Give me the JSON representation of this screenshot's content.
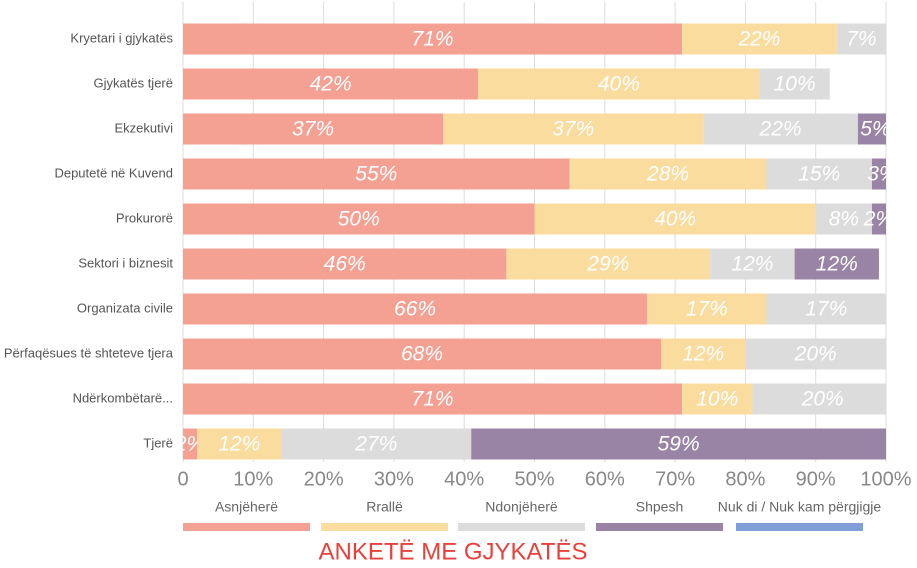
{
  "chart_data": {
    "type": "stacked_bar_horizontal",
    "title": "ANKETË ME GJYKATËS",
    "categories": [
      "Kryetari i gjykatës",
      "Gjykatës tjerë",
      "Ekzekutivi",
      "Deputetë në Kuvend",
      "Prokurorë",
      "Sektori i biznesit",
      "Organizata civile",
      "Përfaqësues të shteteve tjera",
      "Ndërkombëtarë...",
      "Tjerë"
    ],
    "series": [
      {
        "name": "Asnjëherë",
        "color": "#f4a193",
        "values": [
          71,
          42,
          37,
          55,
          50,
          46,
          66,
          68,
          71,
          2
        ],
        "value_labels": [
          "71%",
          "42%",
          "37%",
          "55%",
          "50%",
          "46%",
          "66%",
          "68%",
          "71%",
          "2%"
        ]
      },
      {
        "name": "Rrallë",
        "color": "#f9dc9e",
        "values": [
          22,
          40,
          37,
          28,
          40,
          29,
          17,
          12,
          10,
          12
        ],
        "value_labels": [
          "22%",
          "40%",
          "37%",
          "28%",
          "40%",
          "29%",
          "17%",
          "12%",
          "10%",
          "12%"
        ]
      },
      {
        "name": "Ndonjëherë",
        "color": "#dcdcdc",
        "values": [
          7,
          10,
          22,
          15,
          8,
          12,
          17,
          20,
          20,
          27
        ],
        "value_labels": [
          "7%",
          "10%",
          "22%",
          "15%",
          "8%",
          "12%",
          "17%",
          "20%",
          "20%",
          "27%"
        ]
      },
      {
        "name": "Shpesh",
        "color": "#9a84a6",
        "values": [
          null,
          null,
          5,
          3,
          2,
          12,
          null,
          null,
          null,
          59
        ],
        "value_labels": [
          null,
          null,
          "5%",
          "3%",
          "2%",
          "12%",
          null,
          null,
          null,
          "59%"
        ]
      },
      {
        "name": "Nuk di / Nuk kam përgjigje",
        "color": "#7f9fd6",
        "values": [
          null,
          null,
          null,
          null,
          null,
          null,
          null,
          null,
          null,
          null
        ]
      }
    ],
    "xlim": [
      0,
      100
    ],
    "xticks": [
      0,
      {
        "value": 10,
        "label": "10%"
      },
      {
        "value": 20,
        "label": "20%"
      },
      {
        "value": 30,
        "label": "30%"
      },
      {
        "value": 40,
        "label": "40%"
      },
      {
        "value": 50,
        "label": "50%"
      },
      {
        "value": 60,
        "label": "60%"
      },
      {
        "value": 70,
        "label": "70%"
      },
      {
        "value": 80,
        "label": "80%"
      },
      {
        "value": 90,
        "label": "90%"
      },
      {
        "value": 100,
        "label": "100%"
      }
    ],
    "grid": true,
    "legend": "bottom"
  }
}
